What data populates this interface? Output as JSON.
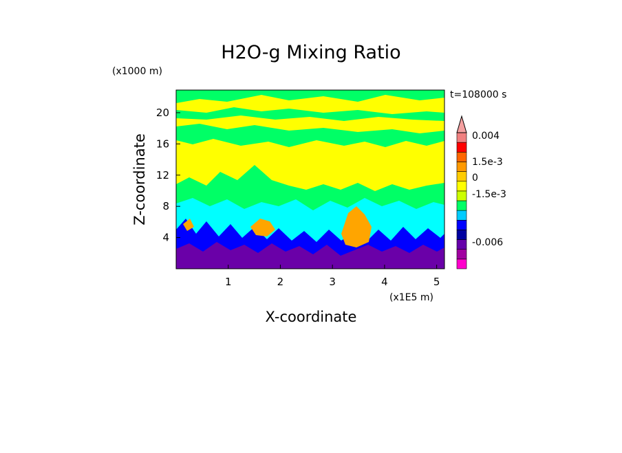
{
  "chart_data": {
    "type": "heatmap",
    "title": "H2O-g Mixing Ratio",
    "xlabel": "X-coordinate",
    "ylabel": "Z-coordinate",
    "x_scale_label": "(x1E5 m)",
    "y_scale_label": "(x1000 m)",
    "time_label": "t=108000 s",
    "xlim": [
      0,
      5.15
    ],
    "ylim": [
      0,
      22.9
    ],
    "x_ticks": [
      1,
      2,
      3,
      4,
      5
    ],
    "y_ticks": [
      4,
      8,
      12,
      16,
      20
    ],
    "x_tick_labels": [
      "1",
      "2",
      "3",
      "4",
      "5"
    ],
    "y_tick_labels": [
      "4",
      "8",
      "12",
      "16",
      "20"
    ],
    "colorbar_labels": [
      "0.004",
      "1.5e-3",
      "0",
      "-1.5e-3",
      "-0.006"
    ],
    "colorbar_colors": [
      "#ff00cc",
      "#a000a0",
      "#6600aa",
      "#0000a0",
      "#0000ff",
      "#00ccff",
      "#00ff66",
      "#ccff00",
      "#ffff00",
      "#ffcc00",
      "#ff9900",
      "#ff6600",
      "#ff0000",
      "#f08080"
    ],
    "layers": [
      {
        "name": "",
        "color": "#ffff00"
      },
      {
        "name": "",
        "color": "#00ff66"
      },
      {
        "name": "",
        "color": "#00ffff"
      },
      {
        "name": "",
        "color": "#0000ff"
      },
      {
        "name": "",
        "color": "#6a00a8"
      },
      {
        "name": "",
        "color": "#ffa500"
      }
    ]
  }
}
